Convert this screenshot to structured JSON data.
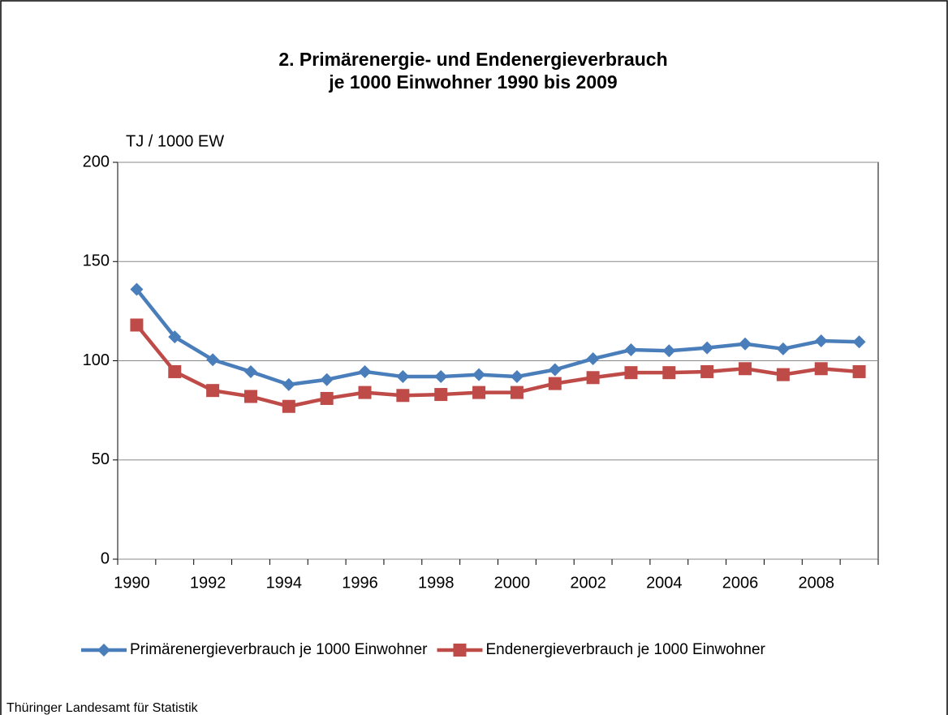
{
  "chart_data": {
    "type": "line",
    "title": "2. Primärenergie- und Endenergieverbrauch",
    "subtitle": "je 1000 Einwohner 1990 bis 2009",
    "y_label": "TJ / 1000 EW",
    "categories": [
      "1990",
      null,
      "1992",
      null,
      "1994",
      null,
      "1996",
      null,
      "1998",
      null,
      "2000",
      null,
      "2002",
      null,
      "2004",
      null,
      "2006",
      null,
      "2008",
      null
    ],
    "series": [
      {
        "name": "Primärenergieverbrauch je 1000 Einwohner",
        "color": "#4a7ebb",
        "marker": "diamond",
        "values": [
          136,
          112,
          100.5,
          94.5,
          88,
          90.5,
          94.5,
          92,
          92,
          93,
          92,
          95.5,
          101,
          105.5,
          105,
          106.5,
          108.5,
          106,
          110,
          109.5
        ]
      },
      {
        "name": "Endenergieverbrauch je 1000 Einwohner",
        "color": "#be4b48",
        "marker": "square",
        "values": [
          118,
          94.5,
          85,
          82,
          77,
          81,
          84,
          82.5,
          83,
          84,
          84,
          88.5,
          91.5,
          94,
          94,
          94.5,
          96,
          93,
          96,
          94.5
        ]
      }
    ],
    "ylim": [
      0,
      200
    ],
    "yticks": [
      0,
      50,
      100,
      150,
      200
    ],
    "grid": true,
    "legend": "bottom",
    "source": "Thüringer Landesamt für Statistik"
  }
}
